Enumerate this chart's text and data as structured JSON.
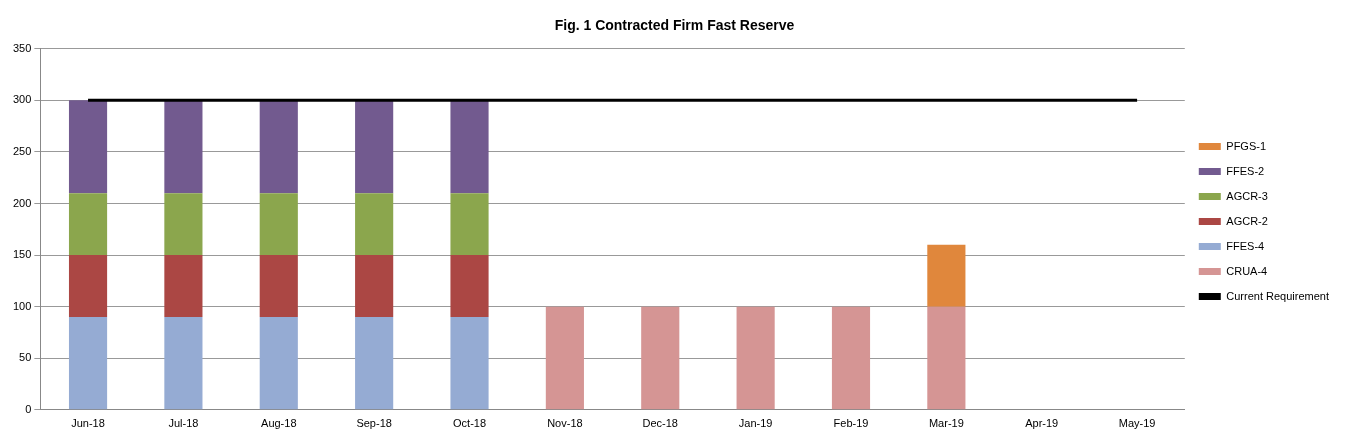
{
  "chart_data": {
    "type": "bar",
    "title": "Fig. 1 Contracted Firm Fast Reserve",
    "stacked": true,
    "categories": [
      "Jun-18",
      "Jul-18",
      "Aug-18",
      "Sep-18",
      "Oct-18",
      "Nov-18",
      "Dec-18",
      "Jan-19",
      "Feb-19",
      "Mar-19",
      "Apr-19",
      "May-19"
    ],
    "series": [
      {
        "name": "CRUA-4",
        "color": "#d59594",
        "values": [
          null,
          null,
          null,
          null,
          null,
          100,
          100,
          100,
          100,
          100,
          null,
          null
        ]
      },
      {
        "name": "FFES-4",
        "color": "#95abd3",
        "values": [
          90,
          90,
          90,
          90,
          90,
          null,
          null,
          null,
          null,
          null,
          null,
          null
        ]
      },
      {
        "name": "AGCR-2",
        "color": "#ab4744",
        "values": [
          60,
          60,
          60,
          60,
          60,
          null,
          null,
          null,
          null,
          null,
          null,
          null
        ]
      },
      {
        "name": "AGCR-3",
        "color": "#8ba64d",
        "values": [
          60,
          60,
          60,
          60,
          60,
          null,
          null,
          null,
          null,
          null,
          null,
          null
        ]
      },
      {
        "name": "FFES-2",
        "color": "#725a8f",
        "values": [
          90,
          90,
          90,
          90,
          90,
          null,
          null,
          null,
          null,
          null,
          null,
          null
        ]
      },
      {
        "name": "PFGS-1",
        "color": "#e0873c",
        "values": [
          null,
          null,
          null,
          null,
          null,
          null,
          null,
          null,
          null,
          60,
          null,
          null
        ]
      },
      {
        "name": "Current Requirement",
        "type": "line",
        "color": "#000000",
        "values": [
          300,
          300,
          300,
          300,
          300,
          300,
          300,
          300,
          300,
          300,
          300,
          300
        ]
      }
    ],
    "ylim": [
      0,
      350
    ],
    "yticks": [
      0,
      50,
      100,
      150,
      200,
      250,
      300,
      350
    ],
    "grid": "y",
    "legend": "right",
    "marker": "none"
  }
}
